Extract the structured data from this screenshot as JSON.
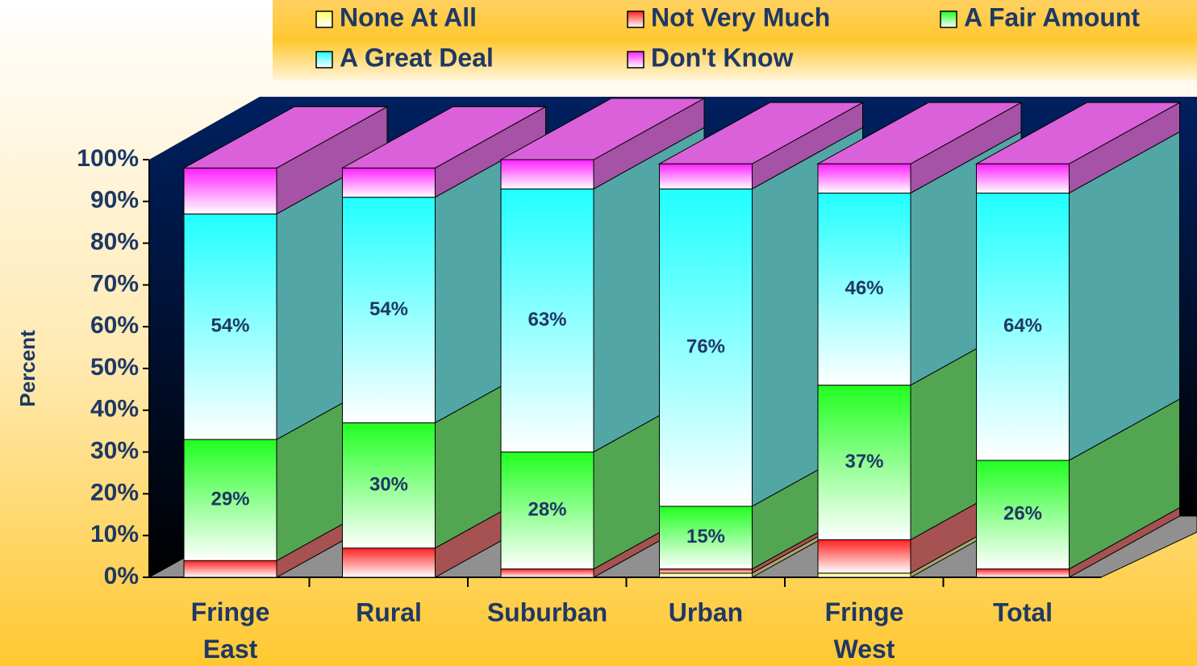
{
  "chart_data": {
    "type": "stacked-bar-3d",
    "categories": [
      "Fringe East",
      "Rural",
      "Suburban",
      "Urban",
      "Fringe West",
      "Total"
    ],
    "y_label": "Percent",
    "ylim": [
      0,
      100
    ],
    "yticks": [
      {
        "value": 0,
        "label": "0%"
      },
      {
        "value": 10,
        "label": "10%"
      },
      {
        "value": 20,
        "label": "20%"
      },
      {
        "value": 30,
        "label": "30%"
      },
      {
        "value": 40,
        "label": "40%"
      },
      {
        "value": 50,
        "label": "50%"
      },
      {
        "value": 60,
        "label": "60%"
      },
      {
        "value": 70,
        "label": "70%"
      },
      {
        "value": 80,
        "label": "80%"
      },
      {
        "value": 90,
        "label": "90%"
      },
      {
        "value": 100,
        "label": "100%"
      }
    ],
    "series": [
      {
        "name": "None At All",
        "color": "#ffff60",
        "values": [
          0,
          0,
          0,
          1,
          1,
          0
        ]
      },
      {
        "name": "Not Very Much",
        "color": "#ff2020",
        "values": [
          4,
          7,
          2,
          1,
          8,
          2
        ]
      },
      {
        "name": "A Fair Amount",
        "color": "#20ff20",
        "values": [
          29,
          30,
          28,
          15,
          37,
          26
        ],
        "value_labels": [
          "29%",
          "30%",
          "28%",
          "15%",
          "37%",
          "26%"
        ]
      },
      {
        "name": "A Great Deal",
        "color": "#20ffff",
        "values": [
          54,
          54,
          63,
          76,
          46,
          64
        ],
        "value_labels": [
          "54%",
          "54%",
          "63%",
          "76%",
          "46%",
          "64%"
        ]
      },
      {
        "name": "Don't Know",
        "color": "#ff20ff",
        "values": [
          11,
          7,
          7,
          6,
          7,
          7
        ]
      }
    ]
  }
}
